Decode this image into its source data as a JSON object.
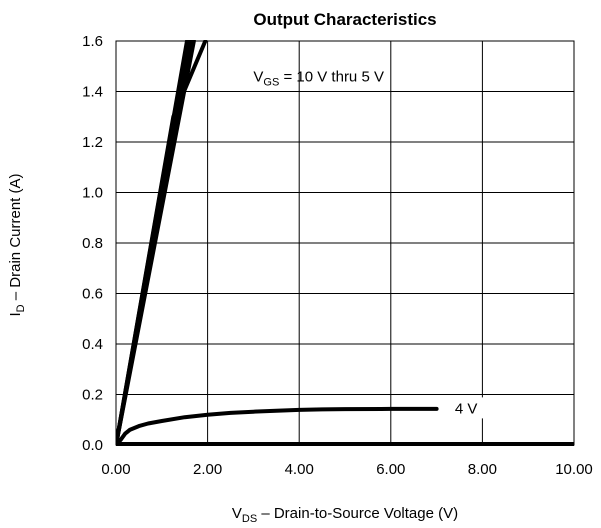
{
  "chart_data": {
    "type": "line",
    "title": "Output Characteristics",
    "xlabel": {
      "main": "V",
      "sub": "DS",
      "rest": " – Drain-to-Source Voltage (V)"
    },
    "ylabel": {
      "main": "I",
      "sub": "D",
      "rest": " – Drain Current (A)"
    },
    "xlim": [
      0,
      10
    ],
    "ylim": [
      0,
      1.6
    ],
    "xticks": [
      {
        "value": 0,
        "label": "0.00"
      },
      {
        "value": 2,
        "label": "2.00"
      },
      {
        "value": 4,
        "label": "4.00"
      },
      {
        "value": 6,
        "label": "6.00"
      },
      {
        "value": 8,
        "label": "8.00"
      },
      {
        "value": 10,
        "label": "10.00"
      }
    ],
    "yticks": [
      {
        "value": 0,
        "label": "0.0"
      },
      {
        "value": 0.2,
        "label": "0.2"
      },
      {
        "value": 0.4,
        "label": "0.4"
      },
      {
        "value": 0.6,
        "label": "0.6"
      },
      {
        "value": 0.8,
        "label": "0.8"
      },
      {
        "value": 1.0,
        "label": "1.0"
      },
      {
        "value": 1.2,
        "label": "1.2"
      },
      {
        "value": 1.4,
        "label": "1.4"
      },
      {
        "value": 1.6,
        "label": "1.6"
      }
    ],
    "grid": true,
    "line_color": "#000000",
    "series": [
      {
        "x": [
          0,
          1.55
        ],
        "y": [
          0,
          1.6
        ]
      },
      {
        "x": [
          0,
          1.6
        ],
        "y": [
          0,
          1.6
        ]
      },
      {
        "x": [
          0,
          1.65
        ],
        "y": [
          0,
          1.6
        ]
      },
      {
        "x": [
          0,
          1.7
        ],
        "y": [
          0,
          1.6
        ]
      },
      {
        "x": [
          0,
          1.25,
          1.95
        ],
        "y": [
          0,
          1.3,
          1.6
        ]
      },
      {
        "name": "4 V",
        "x": [
          0,
          0.1,
          0.2,
          0.3,
          0.5,
          0.7,
          1.0,
          1.5,
          2.0,
          2.5,
          3.0,
          3.5,
          4.0,
          4.5,
          5.0,
          6.0,
          7.0
        ],
        "y": [
          0,
          0.02,
          0.045,
          0.06,
          0.075,
          0.085,
          0.095,
          0.11,
          0.12,
          0.127,
          0.132,
          0.136,
          0.139,
          0.141,
          0.142,
          0.143,
          0.143
        ]
      }
    ],
    "annotations": [
      {
        "text": {
          "main": "V",
          "sub": "GS",
          "rest": " = 10 V thru 5 V"
        },
        "x": 3.0,
        "y": 1.46
      },
      {
        "text": "4 V",
        "x": 7.4,
        "y": 0.145
      }
    ]
  }
}
